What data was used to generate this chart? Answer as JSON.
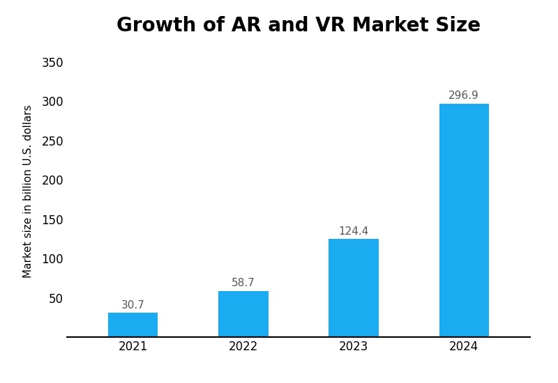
{
  "title": "Growth of AR and VR Market Size",
  "ylabel": "Market size in billion U.S. dollars",
  "categories": [
    "2021",
    "2022",
    "2023",
    "2024"
  ],
  "values": [
    30.7,
    58.7,
    124.4,
    296.9
  ],
  "bar_color": "#1AABF0",
  "label_color": "#555555",
  "ylim": [
    0,
    370
  ],
  "yticks": [
    0,
    50,
    100,
    150,
    200,
    250,
    300,
    350
  ],
  "title_fontsize": 20,
  "ylabel_fontsize": 11,
  "tick_fontsize": 12,
  "value_label_fontsize": 11,
  "bar_width": 0.45,
  "background_color": "#ffffff"
}
